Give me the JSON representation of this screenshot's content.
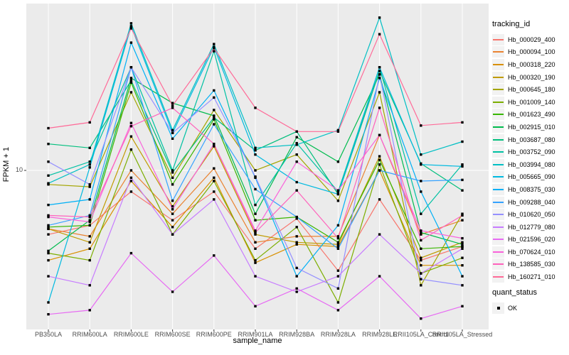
{
  "colors": {
    "panel_bg": "#EBEBEB",
    "grid": "#FFFFFF",
    "legend_key_bg": "#F2F2F2",
    "axis_text": "#4D4D4D",
    "title_text": "#000000",
    "marker": "#000000",
    "tick_mark": "#333333"
  },
  "chart_data": {
    "type": "line",
    "title": "",
    "xlabel": "sample_name",
    "ylabel": "FPKM + 1",
    "legend_title": "tracking_id",
    "legend_position": "right",
    "grid": "white-on-gray",
    "marker": "black-square",
    "x_categories": [
      "PB350LA",
      "RRIM600LA",
      "RRIM600LE",
      "RRIM600SE",
      "RRIM600PE",
      "RRIM901LA",
      "RRIM928BA",
      "RRIM928LA",
      "RRIM928LE",
      "RRII105LA_Control",
      "RRII105LA_Stressed"
    ],
    "y_axis": {
      "scale": "log10",
      "tick_labels": [
        "10"
      ],
      "tick_values": [
        10
      ],
      "ylim": [
        2.1,
        52
      ]
    },
    "series": [
      {
        "name": "Hb_000029_400",
        "color": "#F8766D",
        "values": [
          5.3,
          5.8,
          8.1,
          6.1,
          8.1,
          4.6,
          6.2,
          3.7,
          7.5,
          4.1,
          4.7
        ]
      },
      {
        "name": "Hb_000094_100",
        "color": "#EA8331",
        "values": [
          5.6,
          5.2,
          10.0,
          6.5,
          10.2,
          4.9,
          5.2,
          5.2,
          14.2,
          5.3,
          6.1
        ]
      },
      {
        "name": "Hb_000318_220",
        "color": "#D89000",
        "values": [
          4.1,
          4.6,
          9.0,
          5.7,
          9.3,
          4.0,
          4.8,
          4.7,
          10.0,
          3.9,
          3.9
        ]
      },
      {
        "name": "Hb_000320_190",
        "color": "#C09B00",
        "values": [
          5.6,
          4.9,
          14.0,
          7.0,
          12.7,
          5.3,
          4.9,
          4.8,
          11.5,
          4.2,
          4.9
        ]
      },
      {
        "name": "Hb_000645_180",
        "color": "#A3A500",
        "values": [
          8.7,
          8.5,
          21.7,
          9.3,
          18.2,
          10.0,
          11.7,
          7.4,
          21.7,
          3.2,
          6.5
        ]
      },
      {
        "name": "Hb_001009_140",
        "color": "#7CAE00",
        "values": [
          4.4,
          4.1,
          12.3,
          5.3,
          9.0,
          4.1,
          5.7,
          2.7,
          10.6,
          3.6,
          4.2
        ]
      },
      {
        "name": "Hb_001623_490",
        "color": "#39B600",
        "values": [
          5.7,
          5.8,
          23.9,
          8.7,
          16.6,
          6.1,
          6.3,
          4.9,
          11.1,
          4.6,
          4.7
        ]
      },
      {
        "name": "Hb_002915_010",
        "color": "#00BB4E",
        "values": [
          4.5,
          6.1,
          25.0,
          19.5,
          17.2,
          6.5,
          13.9,
          10.9,
          25.9,
          5.4,
          4.8
        ]
      },
      {
        "name": "Hb_003687_080",
        "color": "#00BF7D",
        "values": [
          13.0,
          12.5,
          24.4,
          9.8,
          16.9,
          12.2,
          14.7,
          7.9,
          26.8,
          10.7,
          8.2
        ]
      },
      {
        "name": "Hb_003752_090",
        "color": "#00C1A3",
        "values": [
          9.5,
          10.9,
          27.8,
          10.0,
          32.6,
          7.1,
          13.1,
          8.1,
          27.8,
          6.5,
          10.6
        ]
      },
      {
        "name": "Hb_003994_080",
        "color": "#00BFC4",
        "values": [
          8.8,
          10.6,
          43.0,
          14.9,
          35.0,
          12.5,
          12.9,
          14.9,
          45.5,
          11.7,
          13.3
        ]
      },
      {
        "name": "Hb_005665_090",
        "color": "#00BAE0",
        "values": [
          2.7,
          10.3,
          41.8,
          14.5,
          34.0,
          11.7,
          8.9,
          7.9,
          27.8,
          10.6,
          10.4
        ]
      },
      {
        "name": "Hb_008375_030",
        "color": "#00B0F6",
        "values": [
          7.1,
          7.5,
          35.5,
          13.7,
          22.1,
          9.3,
          3.5,
          5.8,
          25.0,
          8.1,
          3.5
        ]
      },
      {
        "name": "Hb_009288_040",
        "color": "#35A2FF",
        "values": [
          5.8,
          6.4,
          27.8,
          7.4,
          15.8,
          8.3,
          6.3,
          4.6,
          10.0,
          9.0,
          9.1
        ]
      },
      {
        "name": "Hb_010620_050",
        "color": "#9590FF",
        "values": [
          10.9,
          8.7,
          27.8,
          14.5,
          20.6,
          9.4,
          3.8,
          3.1,
          25.9,
          3.4,
          3.2
        ]
      },
      {
        "name": "Hb_012779_080",
        "color": "#C77CFF",
        "values": [
          3.5,
          3.2,
          9.3,
          5.3,
          7.5,
          3.5,
          3.0,
          3.5,
          5.3,
          3.6,
          4.6
        ]
      },
      {
        "name": "Hb_021596_020",
        "color": "#E76BF3",
        "values": [
          2.4,
          2.5,
          4.4,
          3.0,
          4.3,
          2.6,
          3.1,
          2.5,
          3.5,
          2.3,
          2.6
        ]
      },
      {
        "name": "Hb_070624_010",
        "color": "#FA62DB",
        "values": [
          6.3,
          6.0,
          16.0,
          6.8,
          13.0,
          5.5,
          10.9,
          8.2,
          14.2,
          5.5,
          5.1
        ]
      },
      {
        "name": "Hb_138585_030",
        "color": "#FF62BC",
        "values": [
          6.4,
          6.3,
          15.5,
          18.6,
          13.0,
          5.4,
          8.2,
          5.1,
          18.6,
          5.0,
          6.4
        ]
      },
      {
        "name": "Hb_160271_010",
        "color": "#FF6A98",
        "values": [
          15.2,
          16.1,
          40.9,
          19.0,
          33.6,
          18.6,
          14.7,
          14.7,
          38.6,
          15.6,
          16.1
        ]
      }
    ],
    "quant_status": {
      "title": "quant_status",
      "items": [
        {
          "label": "OK",
          "marker": "black-square"
        }
      ]
    }
  }
}
